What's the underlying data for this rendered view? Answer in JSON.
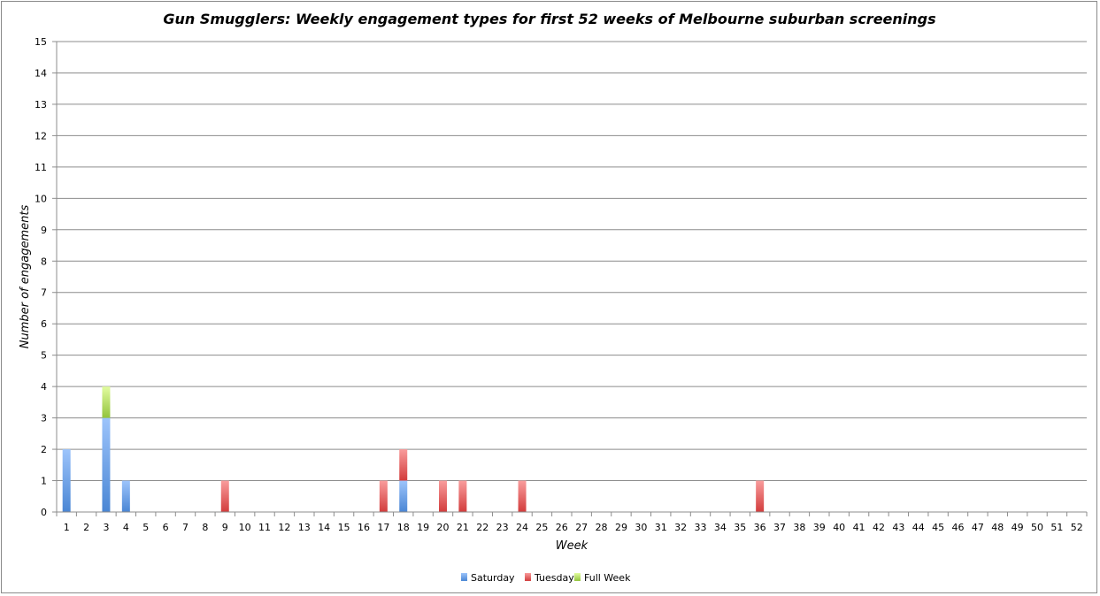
{
  "chart_data": {
    "type": "bar",
    "stacked": true,
    "title": "Gun Smugglers: Weekly engagement types for first 52 weeks of Melbourne suburban screenings",
    "xlabel": "Week",
    "ylabel": "Number of engagements",
    "ylim": [
      0,
      15
    ],
    "yticks": [
      0,
      1,
      2,
      3,
      4,
      5,
      6,
      7,
      8,
      9,
      10,
      11,
      12,
      13,
      14,
      15
    ],
    "grid": true,
    "legend_position": "bottom",
    "categories": [
      "1",
      "2",
      "3",
      "4",
      "5",
      "6",
      "7",
      "8",
      "9",
      "10",
      "11",
      "12",
      "13",
      "14",
      "15",
      "16",
      "17",
      "18",
      "19",
      "20",
      "21",
      "22",
      "23",
      "24",
      "25",
      "26",
      "27",
      "28",
      "29",
      "30",
      "31",
      "32",
      "33",
      "34",
      "35",
      "36",
      "37",
      "38",
      "39",
      "40",
      "41",
      "42",
      "43",
      "44",
      "45",
      "46",
      "47",
      "48",
      "49",
      "50",
      "51",
      "52"
    ],
    "series": [
      {
        "name": "Saturday",
        "color": "#4a86d4",
        "color_light": "#9dc4fb",
        "values": [
          2,
          0,
          3,
          1,
          0,
          0,
          0,
          0,
          0,
          0,
          0,
          0,
          0,
          0,
          0,
          0,
          0,
          1,
          0,
          0,
          0,
          0,
          0,
          0,
          0,
          0,
          0,
          0,
          0,
          0,
          0,
          0,
          0,
          0,
          0,
          0,
          0,
          0,
          0,
          0,
          0,
          0,
          0,
          0,
          0,
          0,
          0,
          0,
          0,
          0,
          0,
          0
        ]
      },
      {
        "name": "Tuesday",
        "color": "#d23c3c",
        "color_light": "#f99c9c",
        "values": [
          0,
          0,
          0,
          0,
          0,
          0,
          0,
          0,
          1,
          0,
          0,
          0,
          0,
          0,
          0,
          0,
          1,
          1,
          0,
          1,
          1,
          0,
          0,
          1,
          0,
          0,
          0,
          0,
          0,
          0,
          0,
          0,
          0,
          0,
          0,
          1,
          0,
          0,
          0,
          0,
          0,
          0,
          0,
          0,
          0,
          0,
          0,
          0,
          0,
          0,
          0,
          0
        ]
      },
      {
        "name": "Full Week",
        "color": "#93c43c",
        "color_light": "#e2fca0",
        "values": [
          0,
          0,
          1,
          0,
          0,
          0,
          0,
          0,
          0,
          0,
          0,
          0,
          0,
          0,
          0,
          0,
          0,
          0,
          0,
          0,
          0,
          0,
          0,
          0,
          0,
          0,
          0,
          0,
          0,
          0,
          0,
          0,
          0,
          0,
          0,
          0,
          0,
          0,
          0,
          0,
          0,
          0,
          0,
          0,
          0,
          0,
          0,
          0,
          0,
          0,
          0,
          0
        ]
      }
    ]
  }
}
